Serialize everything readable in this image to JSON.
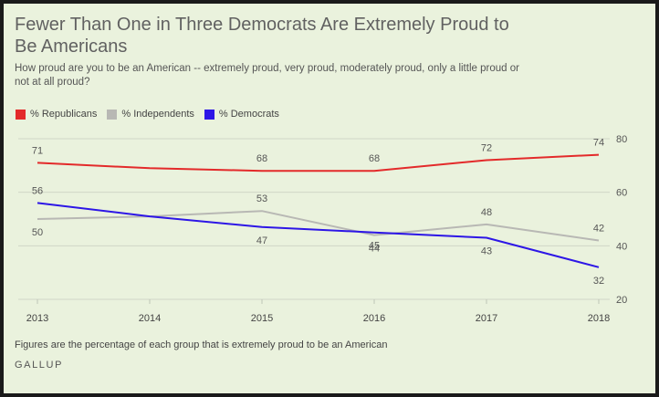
{
  "title": "Fewer Than One in Three Democrats Are Extremely Proud to Be Americans",
  "subtitle": "How proud are you to be an American -- extremely proud, very proud, moderately proud, only a little proud or not at all proud?",
  "footnote": "Figures are the percentage of each group that is extremely proud to be an American",
  "brand": "GALLUP",
  "chart_data": {
    "type": "line",
    "x": [
      2013,
      2014,
      2015,
      2016,
      2017,
      2018
    ],
    "x_tick_labels": [
      "2013",
      "2014",
      "2015",
      "2016",
      "2017",
      "2018"
    ],
    "ylim": [
      20,
      80
    ],
    "y_ticks": [
      20,
      40,
      60,
      80
    ],
    "grid": true,
    "legend_position": "top-left",
    "y_axis_side": "right",
    "series": [
      {
        "name": "% Republicans",
        "color": "#e32a2a",
        "values": [
          71,
          69,
          68,
          68,
          72,
          74
        ],
        "labels": [
          "71",
          null,
          "68",
          "68",
          "72",
          "74"
        ]
      },
      {
        "name": "% Independents",
        "color": "#b8b8b4",
        "values": [
          50,
          51,
          53,
          44,
          48,
          42
        ],
        "labels": [
          "50",
          null,
          "53",
          "44",
          "48",
          "42"
        ]
      },
      {
        "name": "% Democrats",
        "color": "#2d16e6",
        "values": [
          56,
          51,
          47,
          45,
          43,
          32
        ],
        "labels": [
          "56",
          null,
          "47",
          "45",
          "43",
          "32"
        ]
      }
    ]
  }
}
